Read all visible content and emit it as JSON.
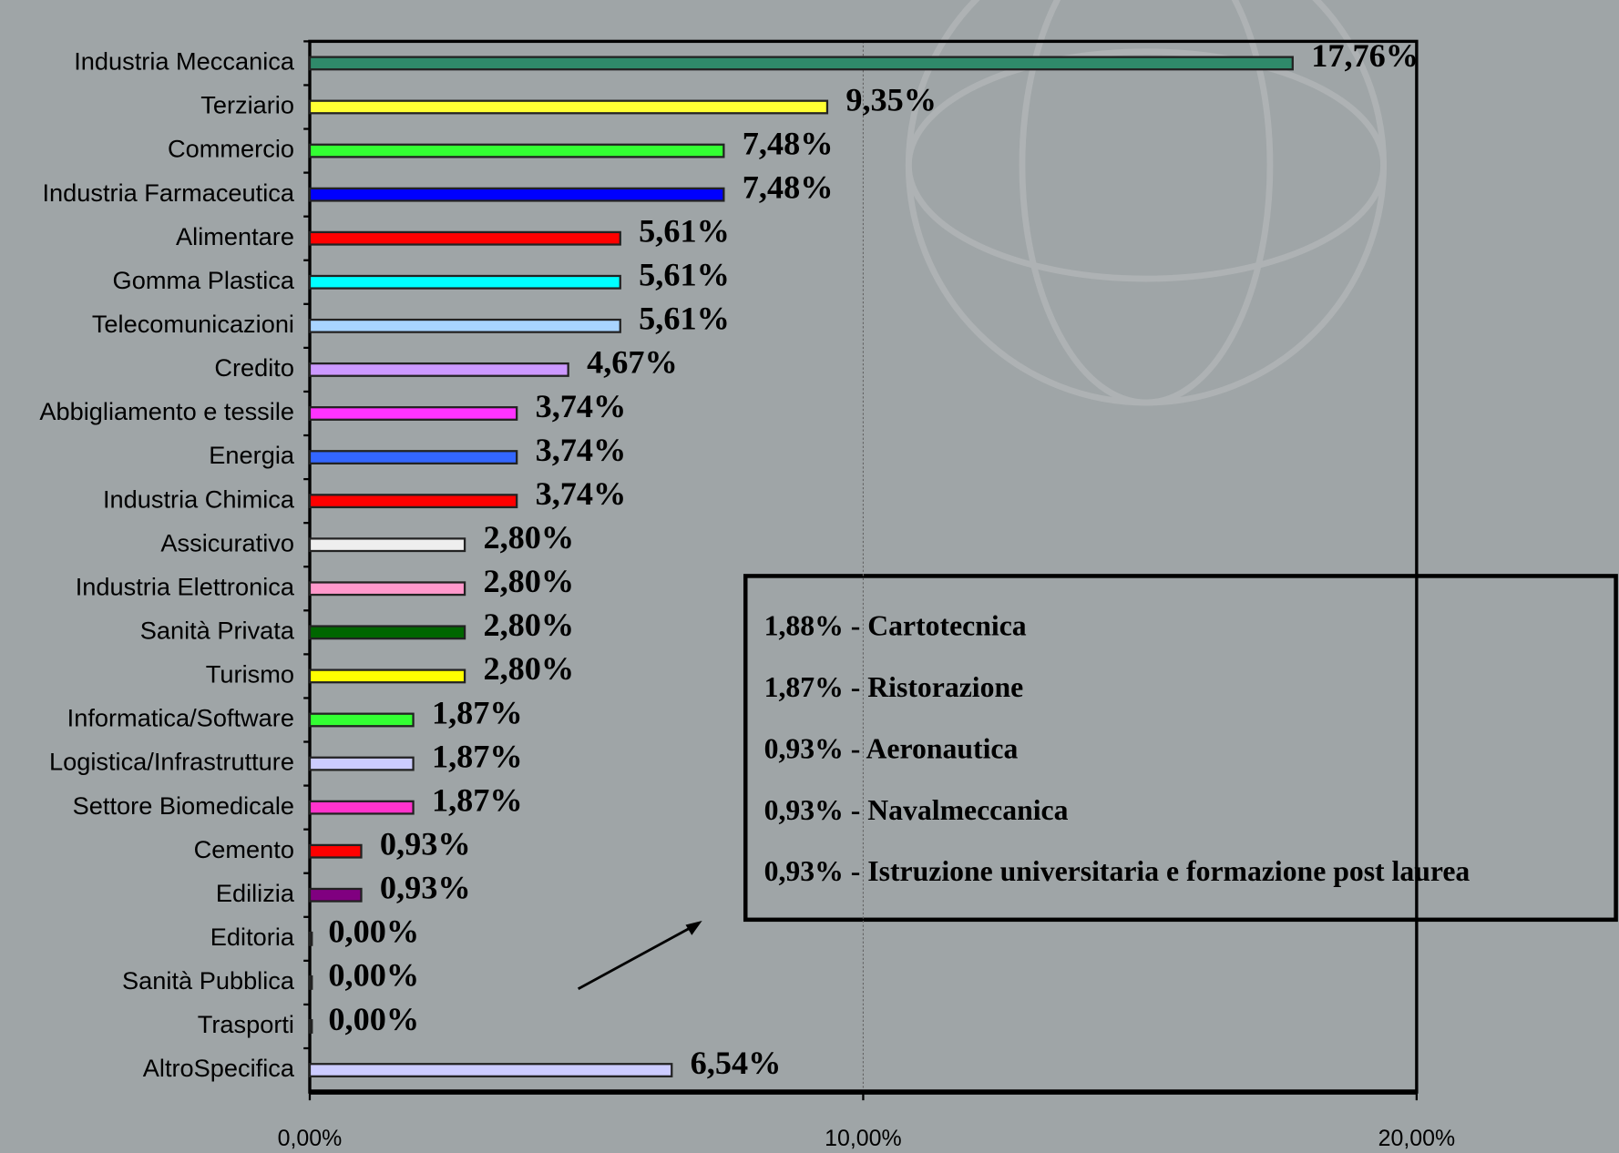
{
  "chart_data": {
    "type": "barh",
    "categories": [
      "Industria Meccanica",
      "Terziario",
      "Commercio",
      "Industria Farmaceutica",
      "Alimentare",
      "Gomma Plastica",
      "Telecomunicazioni",
      "Credito",
      "Abbigliamento e tessile",
      "Energia",
      "Industria Chimica",
      "Assicurativo",
      "Industria Elettronica",
      "Sanità Privata",
      "Turismo",
      "Informatica/Software",
      "Logistica/Infrastrutture",
      "Settore Biomedicale",
      "Cemento",
      "Edilizia",
      "Editoria",
      "Sanità Pubblica",
      "Trasporti",
      "AltroSpecifica"
    ],
    "values": [
      17.76,
      9.35,
      7.48,
      7.48,
      5.61,
      5.61,
      5.61,
      4.67,
      3.74,
      3.74,
      3.74,
      2.8,
      2.8,
      2.8,
      2.8,
      1.87,
      1.87,
      1.87,
      0.93,
      0.93,
      0.0,
      0.0,
      0.0,
      6.54
    ],
    "value_labels": [
      "17,76%",
      "9,35%",
      "7,48%",
      "7,48%",
      "5,61%",
      "5,61%",
      "5,61%",
      "4,67%",
      "3,74%",
      "3,74%",
      "3,74%",
      "2,80%",
      "2,80%",
      "2,80%",
      "2,80%",
      "1,87%",
      "1,87%",
      "1,87%",
      "0,93%",
      "0,93%",
      "0,00%",
      "0,00%",
      "0,00%",
      "6,54%"
    ],
    "colors": [
      "#2f8a6a",
      "#ffff33",
      "#33ff33",
      "#0000ff",
      "#ff0000",
      "#00ffff",
      "#a8d4ff",
      "#cc99ff",
      "#ff33ff",
      "#3366ff",
      "#ff0000",
      "#eeeeee",
      "#ff99cc",
      "#006600",
      "#ffff00",
      "#33ff33",
      "#ccccff",
      "#ff33cc",
      "#ff0000",
      "#800080",
      "#33cc33",
      "#33cc33",
      "#33cc33",
      "#ccccff"
    ],
    "xlim": [
      0,
      20
    ],
    "xticks": [
      {
        "value": 0,
        "label": "0,00%"
      },
      {
        "value": 10,
        "label": "10,00%"
      },
      {
        "value": 20,
        "label": "20,00%"
      }
    ],
    "grid": true,
    "annotations": [
      "1,88% - Cartotecnica",
      "1,87% - Ristorazione",
      "0,93% - Aeronautica",
      "0,93% - Navalmeccanica",
      "0,93% - Istruzione universitaria e formazione post laurea"
    ]
  }
}
